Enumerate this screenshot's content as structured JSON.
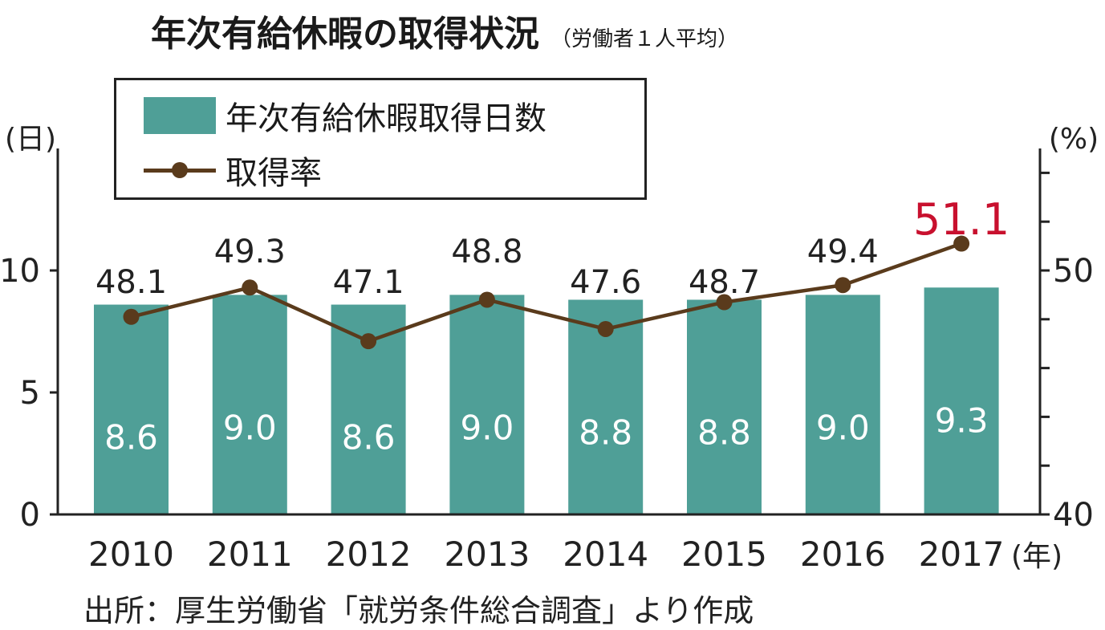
{
  "title": "年次有給休暇の取得状況",
  "subtitle": "（労働者１人平均）",
  "source": "出所：厚生労働省「就労条件総合調査」より作成",
  "colors": {
    "bar": "#4f9f97",
    "line": "#5a3b1c",
    "highlight": "#c8102e",
    "axis": "#222222",
    "bar_label": "#ffffff"
  },
  "chart_data": {
    "type": "bar",
    "title": "年次有給休暇の取得状況",
    "subtitle": "（労働者１人平均）",
    "x_unit": "(年)",
    "categories": [
      "2010",
      "2011",
      "2012",
      "2013",
      "2014",
      "2015",
      "2016",
      "2017"
    ],
    "series": [
      {
        "name": "年次有給休暇取得日数",
        "type": "bar",
        "axis": "left",
        "values": [
          8.6,
          9.0,
          8.6,
          9.0,
          8.8,
          8.8,
          9.0,
          9.3
        ],
        "labels": [
          "8.6",
          "9.0",
          "8.6",
          "9.0",
          "8.8",
          "8.8",
          "9.0",
          "9.3"
        ]
      },
      {
        "name": "取得率",
        "type": "line",
        "axis": "right",
        "values": [
          48.1,
          49.3,
          47.1,
          48.8,
          47.6,
          48.7,
          49.4,
          51.1
        ],
        "labels": [
          "48.1",
          "49.3",
          "47.1",
          "48.8",
          "47.6",
          "48.7",
          "49.4",
          "51.1"
        ],
        "highlight_index": 7
      }
    ],
    "y_left": {
      "unit": "(日)",
      "range": [
        0,
        15
      ],
      "ticks": [
        0,
        5,
        10
      ],
      "tick_labels": [
        "0",
        "5",
        "10"
      ]
    },
    "y_right": {
      "unit": "(%)",
      "range": [
        40,
        55
      ],
      "ticks": [
        40,
        50
      ],
      "tick_labels": [
        "40",
        "50"
      ],
      "minor_ticks": [
        42,
        44,
        46,
        48,
        52,
        54
      ]
    },
    "grid": false,
    "legend_position": "top-left"
  }
}
